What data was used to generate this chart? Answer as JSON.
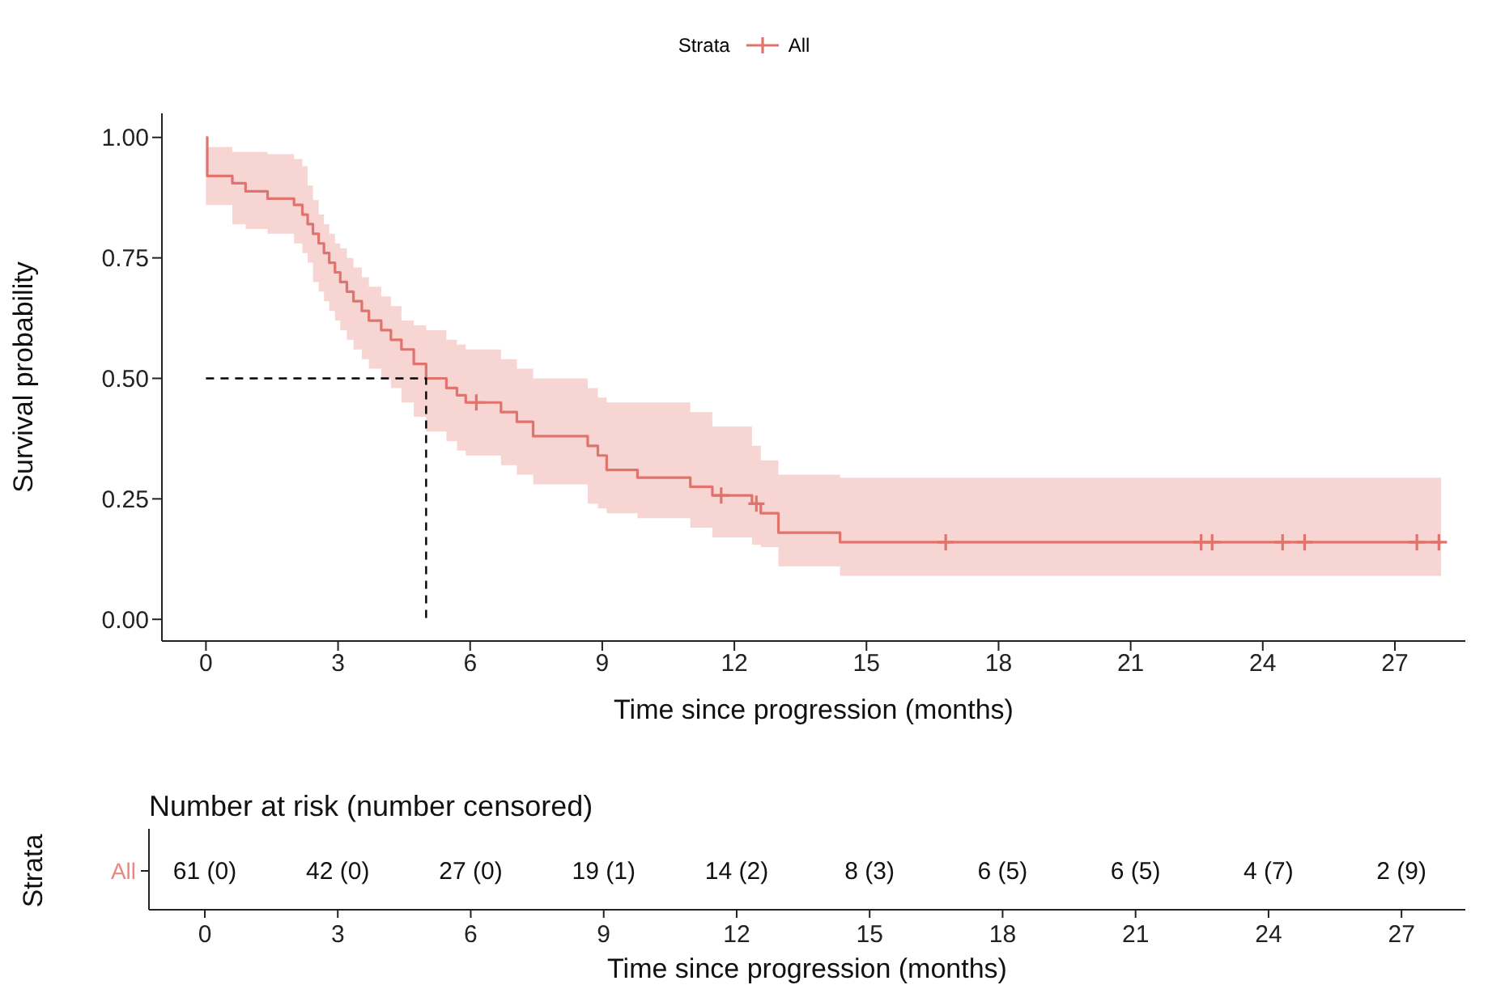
{
  "chart_data": [
    {
      "type": "step",
      "xlabel": "Time since progression (months)",
      "ylabel": "Survival probability",
      "legend_title": "Strata",
      "legend": "top",
      "grid": false,
      "xlim": [
        -1.0,
        28.6
      ],
      "xticks": [
        0,
        3,
        6,
        9,
        12,
        15,
        18,
        21,
        24,
        27
      ],
      "ylim": [
        -0.045,
        1.05
      ],
      "yticks": [
        {
          "value": 0,
          "label": "0.00"
        },
        {
          "value": 0.25,
          "label": "0.25"
        },
        {
          "value": 0.5,
          "label": "0.50"
        },
        {
          "value": 0.75,
          "label": "0.75"
        },
        {
          "value": 1,
          "label": "1.00"
        }
      ],
      "x": [
        0,
        0.03,
        0.6,
        0.9,
        1.4,
        2.0,
        2.19,
        2.31,
        2.43,
        2.56,
        2.68,
        2.8,
        2.93,
        3.05,
        3.2,
        3.35,
        3.54,
        3.7,
        3.98,
        4.2,
        4.44,
        4.72,
        5.0,
        5.46,
        5.7,
        5.9,
        6.7,
        7.06,
        7.43,
        8.67,
        8.9,
        9.1,
        9.8,
        11.0,
        11.5,
        12.4,
        12.6,
        13.0,
        14.4,
        28.05
      ],
      "series": [
        {
          "name": "All",
          "color": "#e0746c",
          "values": [
            1.0,
            0.92,
            0.905,
            0.888,
            0.873,
            0.86,
            0.84,
            0.82,
            0.8,
            0.78,
            0.76,
            0.74,
            0.72,
            0.7,
            0.68,
            0.66,
            0.64,
            0.62,
            0.6,
            0.58,
            0.56,
            0.53,
            0.5,
            0.48,
            0.465,
            0.45,
            0.43,
            0.41,
            0.38,
            0.36,
            0.34,
            0.31,
            0.294,
            0.275,
            0.257,
            0.24,
            0.22,
            0.18,
            0.16,
            0.16
          ],
          "upper": [
            0.98,
            0.98,
            0.97,
            0.97,
            0.965,
            0.955,
            0.94,
            0.9,
            0.87,
            0.84,
            0.82,
            0.8,
            0.78,
            0.77,
            0.75,
            0.73,
            0.71,
            0.69,
            0.67,
            0.65,
            0.62,
            0.61,
            0.6,
            0.58,
            0.57,
            0.56,
            0.54,
            0.52,
            0.5,
            0.48,
            0.46,
            0.45,
            0.45,
            0.43,
            0.4,
            0.36,
            0.33,
            0.3,
            0.294,
            0.294
          ],
          "lower": [
            0.86,
            0.86,
            0.82,
            0.81,
            0.8,
            0.78,
            0.76,
            0.74,
            0.7,
            0.68,
            0.66,
            0.64,
            0.62,
            0.6,
            0.58,
            0.56,
            0.54,
            0.52,
            0.5,
            0.48,
            0.45,
            0.42,
            0.39,
            0.37,
            0.35,
            0.34,
            0.32,
            0.3,
            0.28,
            0.24,
            0.23,
            0.22,
            0.21,
            0.19,
            0.17,
            0.155,
            0.15,
            0.11,
            0.09,
            0.09
          ]
        },
        {
          "type": "scatter",
          "marker": "cross",
          "color": "#e0746c",
          "x": [
            6.14,
            11.7,
            12.5,
            16.8,
            22.6,
            22.85,
            24.45,
            24.95,
            27.5,
            28.0
          ],
          "values": [
            0.45,
            0.257,
            0.24,
            0.16,
            0.16,
            0.16,
            0.16,
            0.16,
            0.16,
            0.16
          ]
        },
        {
          "type": "line",
          "color": "#000000",
          "line_style": "dashed",
          "x": [
            0,
            5,
            5
          ],
          "values": [
            0.5,
            0.5,
            0
          ]
        }
      ]
    },
    {
      "type": "heatmap",
      "title": "Number at risk (number censored)",
      "ylabel": "Strata",
      "xlabel": "Time since progression (months)",
      "categories": [
        "0",
        "3",
        "6",
        "9",
        "12",
        "15",
        "18",
        "21",
        "24",
        "27"
      ],
      "y_categories": [
        "All"
      ],
      "colors": [
        "#e8877f"
      ],
      "cells": [
        [
          null,
          null,
          null,
          null,
          null,
          null,
          null,
          null,
          null,
          null
        ]
      ],
      "cell_labels": [
        [
          "61 (0)",
          "42 (0)",
          "27 (0)",
          "19 (1)",
          "14 (2)",
          "8 (3)",
          "6 (5)",
          "6 (5)",
          "4 (7)",
          "2 (9)"
        ]
      ]
    }
  ]
}
